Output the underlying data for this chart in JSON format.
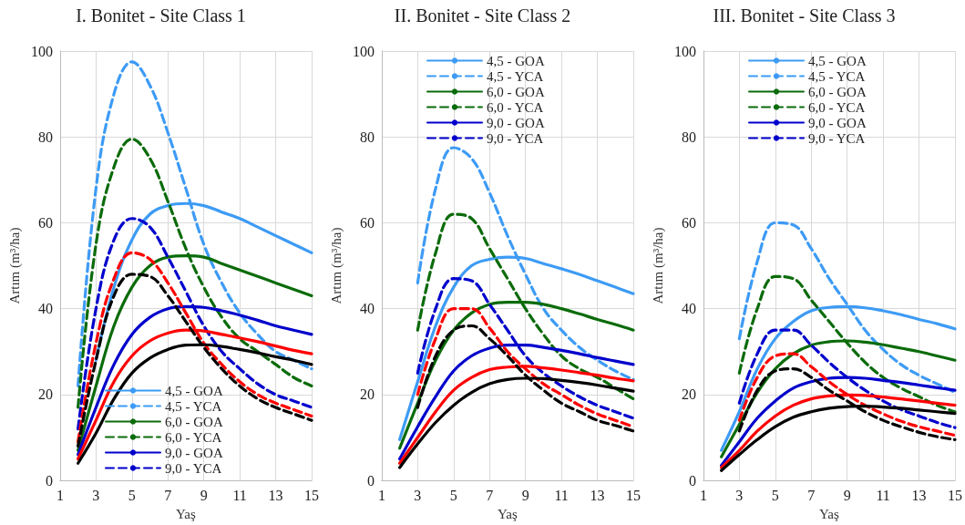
{
  "chart_data": [
    {
      "type": "line",
      "title": "I. Bonitet - Site Class 1",
      "xlabel": "Yaş",
      "ylabel": "Artım (m³/ha)",
      "xlim": [
        1,
        15
      ],
      "xticks": [
        1,
        3,
        5,
        7,
        9,
        11,
        13,
        15
      ],
      "ylim": [
        0,
        100
      ],
      "yticks": [
        0,
        20,
        40,
        60,
        80,
        100
      ],
      "grid": true,
      "legend": "bottom",
      "marker": "none",
      "series": [
        {
          "name": "4,5 - GOA",
          "color": "#3d9bf5",
          "line_style": "solid",
          "x": [
            3,
            4,
            5,
            6,
            7,
            8,
            9,
            10,
            11,
            12,
            13,
            14,
            15
          ],
          "values": [
            28,
            45,
            56,
            62,
            64,
            64.5,
            64,
            62.5,
            61,
            59,
            57,
            55,
            53
          ]
        },
        {
          "name": "4,5 - YCA",
          "color": "#3d9bf5",
          "line_style": "dashed",
          "x": [
            2,
            3,
            4,
            5,
            6,
            7,
            8,
            9,
            10,
            11,
            12,
            13,
            14,
            15
          ],
          "values": [
            22,
            68,
            90,
            97.5,
            92,
            81,
            68,
            55,
            46,
            39,
            34,
            30,
            28,
            26
          ]
        },
        {
          "name": "6,0 - GOA",
          "color": "#0a6b0a",
          "line_style": "solid",
          "x": [
            2,
            3,
            4,
            5,
            6,
            7,
            8,
            9,
            10,
            11,
            12,
            13,
            14,
            15
          ],
          "values": [
            7,
            22,
            36,
            45,
            50,
            52,
            52.3,
            52,
            50.5,
            49,
            47.5,
            46,
            44.5,
            43
          ]
        },
        {
          "name": "6,0 - YCA",
          "color": "#0a6b0a",
          "line_style": "dashed",
          "x": [
            2,
            3,
            4,
            5,
            6,
            7,
            8,
            9,
            10,
            11,
            12,
            13,
            14,
            15
          ],
          "values": [
            17,
            55,
            73,
            79.5,
            75,
            65,
            54,
            45,
            38,
            33,
            30,
            27,
            24,
            22
          ]
        },
        {
          "name": "9,0 - GOA",
          "color": "#0000cc",
          "line_style": "solid",
          "x": [
            2,
            3,
            4,
            5,
            6,
            7,
            8,
            9,
            10,
            11,
            12,
            13,
            14,
            15
          ],
          "values": [
            6,
            17,
            27,
            34,
            38,
            40,
            40.5,
            40.3,
            39.5,
            38.5,
            37.3,
            36,
            35,
            34
          ]
        },
        {
          "name": "9,0 - YCA",
          "color": "#0000cc",
          "line_style": "dashed",
          "x": [
            2,
            3,
            4,
            5,
            6,
            7,
            8,
            9,
            10,
            11,
            12,
            13,
            14,
            15
          ],
          "values": [
            12,
            40,
            56,
            61,
            59,
            52,
            44,
            36,
            30,
            26,
            22.5,
            20,
            18.5,
            17
          ]
        },
        {
          "color": "#ff0000",
          "line_style": "solid",
          "x": [
            2,
            3,
            4,
            5,
            6,
            7,
            8,
            9,
            10,
            11,
            12,
            13,
            14,
            15
          ],
          "values": [
            5,
            14,
            23,
            29,
            32.5,
            34.3,
            35,
            34.8,
            34,
            33.2,
            32.3,
            31.3,
            30.3,
            29.5
          ]
        },
        {
          "color": "#ff0000",
          "line_style": "dashed",
          "x": [
            2,
            3,
            4,
            5,
            6,
            7,
            8,
            9,
            10,
            11,
            12,
            13,
            14,
            15
          ],
          "values": [
            9,
            32,
            47,
            53,
            51.5,
            46,
            39,
            32,
            27,
            23,
            20,
            18,
            16.5,
            15
          ]
        },
        {
          "color": "#000000",
          "line_style": "solid",
          "x": [
            2,
            3,
            4,
            5,
            6,
            7,
            8,
            9,
            10,
            11,
            12,
            13,
            14,
            15
          ],
          "values": [
            4,
            11,
            19,
            25,
            28.5,
            30.5,
            31.5,
            31.6,
            31.2,
            30.5,
            29.7,
            28.8,
            28,
            27
          ]
        },
        {
          "color": "#000000",
          "line_style": "dashed",
          "x": [
            2,
            3,
            4,
            5,
            6,
            7,
            8,
            9,
            10,
            11,
            12,
            13,
            14,
            15
          ],
          "values": [
            8,
            28,
            43,
            48,
            47.5,
            43,
            37,
            31,
            26,
            22,
            19,
            17,
            15.5,
            14
          ]
        }
      ]
    },
    {
      "type": "line",
      "title": "II. Bonitet - Site Class 2",
      "xlabel": "Yaş",
      "ylabel": "Artım (m³/ha)",
      "xlim": [
        1,
        15
      ],
      "xticks": [
        1,
        3,
        5,
        7,
        9,
        11,
        13,
        15
      ],
      "ylim": [
        0,
        100
      ],
      "yticks": [
        0,
        20,
        40,
        60,
        80,
        100
      ],
      "grid": true,
      "legend": "top",
      "marker": "none",
      "series": [
        {
          "name": "4,5 - GOA",
          "color": "#3d9bf5",
          "line_style": "solid",
          "x": [
            2,
            3,
            4,
            5,
            6,
            7,
            8,
            9,
            10,
            11,
            12,
            13,
            14,
            15
          ],
          "values": [
            9.5,
            23,
            36,
            45,
            50,
            51.5,
            52,
            51.7,
            50.5,
            49.3,
            48,
            46.5,
            45,
            43.5
          ]
        },
        {
          "name": "4,5 - YCA",
          "color": "#3d9bf5",
          "line_style": "dashed",
          "x": [
            3,
            4,
            5,
            6,
            7,
            8,
            9,
            10,
            11,
            12,
            13,
            14,
            15
          ],
          "values": [
            46,
            68,
            77.5,
            75,
            67,
            57,
            48,
            40,
            35,
            31,
            28,
            25.5,
            23.5
          ]
        },
        {
          "name": "6,0 - GOA",
          "color": "#0a6b0a",
          "line_style": "solid",
          "x": [
            2,
            3,
            4,
            5,
            6,
            7,
            8,
            9,
            10,
            11,
            12,
            13,
            14,
            15
          ],
          "values": [
            7.5,
            18,
            28,
            35,
            39,
            41,
            41.5,
            41.5,
            41,
            40,
            38.8,
            37.5,
            36.3,
            35
          ]
        },
        {
          "name": "6,0 - YCA",
          "color": "#0a6b0a",
          "line_style": "dashed",
          "x": [
            3,
            4,
            5,
            6,
            7,
            8,
            9,
            10,
            11,
            12,
            13,
            14,
            15
          ],
          "values": [
            35,
            53,
            62,
            61,
            54,
            47,
            40,
            34,
            29,
            26,
            24,
            21.5,
            19
          ]
        },
        {
          "name": "9,0 - GOA",
          "color": "#0000cc",
          "line_style": "solid",
          "x": [
            2,
            3,
            4,
            5,
            6,
            7,
            8,
            9,
            10,
            11,
            12,
            13,
            14,
            15
          ],
          "values": [
            5,
            12.5,
            19.5,
            25.5,
            29,
            30.8,
            31.5,
            31.5,
            31,
            30.3,
            29.5,
            28.6,
            27.8,
            27
          ]
        },
        {
          "name": "9,0 - YCA",
          "color": "#0000cc",
          "line_style": "dashed",
          "x": [
            3,
            4,
            5,
            6,
            7,
            8,
            9,
            10,
            11,
            12,
            13,
            14,
            15
          ],
          "values": [
            25,
            40,
            47,
            46.5,
            41,
            35,
            29,
            25,
            22,
            19.5,
            17.5,
            16,
            14.5
          ]
        },
        {
          "color": "#ff0000",
          "line_style": "solid",
          "x": [
            2,
            3,
            4,
            5,
            6,
            7,
            8,
            9,
            10,
            11,
            12,
            13,
            14,
            15
          ],
          "values": [
            4,
            10,
            16,
            21,
            24,
            25.8,
            26.4,
            26.6,
            26.2,
            25.7,
            25.1,
            24.5,
            23.8,
            23.2
          ]
        },
        {
          "color": "#ff0000",
          "line_style": "dashed",
          "x": [
            3,
            4,
            5,
            6,
            7,
            8,
            9,
            10,
            11,
            12,
            13,
            14,
            15
          ],
          "values": [
            20,
            33,
            40,
            40,
            35.5,
            30,
            26,
            22.5,
            20,
            17.5,
            15.5,
            14,
            12.5
          ]
        },
        {
          "color": "#000000",
          "line_style": "solid",
          "x": [
            2,
            3,
            4,
            5,
            6,
            7,
            8,
            9,
            10,
            11,
            12,
            13,
            14,
            15
          ],
          "values": [
            3,
            8.5,
            13.5,
            17.5,
            20.5,
            22.5,
            23.5,
            23.8,
            23.7,
            23.3,
            22.8,
            22.2,
            21.5,
            20.8
          ]
        },
        {
          "color": "#000000",
          "line_style": "dashed",
          "x": [
            3,
            4,
            5,
            6,
            7,
            8,
            9,
            10,
            11,
            12,
            13,
            14,
            15
          ],
          "values": [
            17,
            29,
            35,
            36,
            33,
            29,
            24.5,
            21,
            18,
            16,
            14,
            12.8,
            11.5
          ]
        }
      ]
    },
    {
      "type": "line",
      "title": "III. Bonitet - Site Class 3",
      "xlabel": "Yaş",
      "ylabel": "Artım (m³/ha)",
      "xlim": [
        1,
        15
      ],
      "xticks": [
        1,
        3,
        5,
        7,
        9,
        11,
        13,
        15
      ],
      "ylim": [
        0,
        100
      ],
      "yticks": [
        0,
        20,
        40,
        60,
        80,
        100
      ],
      "grid": true,
      "legend": "top",
      "marker": "none",
      "series": [
        {
          "name": "4,5 - GOA",
          "color": "#3d9bf5",
          "line_style": "solid",
          "x": [
            2,
            3,
            4,
            5,
            6,
            7,
            8,
            9,
            10,
            11,
            12,
            13,
            14,
            15
          ],
          "values": [
            7,
            16,
            26,
            33,
            37,
            39.5,
            40.3,
            40.5,
            40.2,
            39.5,
            38.6,
            37.5,
            36.5,
            35.3
          ]
        },
        {
          "name": "4,5 - YCA",
          "color": "#3d9bf5",
          "line_style": "dashed",
          "x": [
            3,
            4,
            5,
            6,
            7,
            8,
            9,
            10,
            11,
            12,
            13,
            14,
            15
          ],
          "values": [
            33,
            51,
            60,
            59.5,
            54,
            47,
            41,
            35,
            30.5,
            27,
            24.5,
            22.5,
            20.5
          ]
        },
        {
          "name": "6,0 - GOA",
          "color": "#0a6b0a",
          "line_style": "solid",
          "x": [
            2,
            3,
            4,
            5,
            6,
            7,
            8,
            9,
            10,
            11,
            12,
            13,
            14,
            15
          ],
          "values": [
            5.5,
            13,
            20.5,
            26,
            29.5,
            31.5,
            32.3,
            32.5,
            32.2,
            31.6,
            30.8,
            30,
            29,
            28
          ]
        },
        {
          "name": "6,0 - YCA",
          "color": "#0a6b0a",
          "line_style": "dashed",
          "x": [
            3,
            4,
            5,
            6,
            7,
            8,
            9,
            10,
            11,
            12,
            13,
            14,
            15
          ],
          "values": [
            25,
            40,
            47.5,
            47,
            42,
            37,
            32,
            27.5,
            24,
            21.5,
            19.5,
            17.5,
            16
          ]
        },
        {
          "name": "9,0 - GOA",
          "color": "#0000cc",
          "line_style": "solid",
          "x": [
            2,
            3,
            4,
            5,
            6,
            7,
            8,
            9,
            10,
            11,
            12,
            13,
            14,
            15
          ],
          "values": [
            3.5,
            9,
            14.5,
            18.5,
            21.5,
            23,
            23.8,
            24,
            23.8,
            23.3,
            22.8,
            22.2,
            21.6,
            21
          ]
        },
        {
          "name": "9,0 - YCA",
          "color": "#0000cc",
          "line_style": "dashed",
          "x": [
            3,
            4,
            5,
            6,
            7,
            8,
            9,
            10,
            11,
            12,
            13,
            14,
            15
          ],
          "values": [
            18,
            29.5,
            35,
            35,
            31.5,
            27.5,
            24,
            21,
            18.5,
            16.5,
            15,
            13.5,
            12.3
          ]
        },
        {
          "color": "#ff0000",
          "line_style": "solid",
          "x": [
            2,
            3,
            4,
            5,
            6,
            7,
            8,
            9,
            10,
            11,
            12,
            13,
            14,
            15
          ],
          "values": [
            3,
            7,
            11.5,
            15,
            17.5,
            19,
            19.7,
            19.9,
            19.8,
            19.4,
            19,
            18.5,
            18,
            17.5
          ]
        },
        {
          "color": "#ff0000",
          "line_style": "dashed",
          "x": [
            3,
            4,
            5,
            6,
            7,
            8,
            9,
            10,
            11,
            12,
            13,
            14,
            15
          ],
          "values": [
            14,
            24,
            29,
            29.5,
            26.5,
            23,
            20,
            17.5,
            15.5,
            13.8,
            12.5,
            11.5,
            10.5
          ]
        },
        {
          "color": "#000000",
          "line_style": "solid",
          "x": [
            2,
            3,
            4,
            5,
            6,
            7,
            8,
            9,
            10,
            11,
            12,
            13,
            14,
            15
          ],
          "values": [
            2.3,
            6,
            9.5,
            12.5,
            14.7,
            16,
            16.8,
            17.2,
            17.3,
            17.1,
            16.8,
            16.4,
            16,
            15.6
          ]
        },
        {
          "color": "#000000",
          "line_style": "dashed",
          "x": [
            3,
            4,
            5,
            6,
            7,
            8,
            9,
            10,
            11,
            12,
            13,
            14,
            15
          ],
          "values": [
            11.5,
            21,
            25.5,
            26,
            24,
            21,
            18.5,
            16,
            14,
            12.5,
            11.2,
            10.2,
            9.5
          ]
        }
      ]
    }
  ]
}
